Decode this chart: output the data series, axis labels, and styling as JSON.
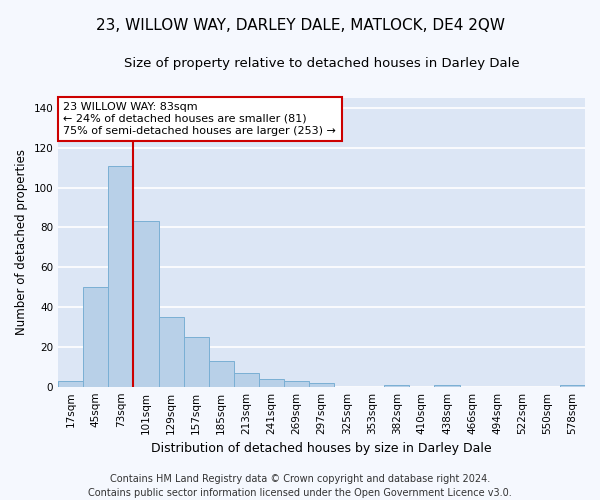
{
  "title": "23, WILLOW WAY, DARLEY DALE, MATLOCK, DE4 2QW",
  "subtitle": "Size of property relative to detached houses in Darley Dale",
  "xlabel": "Distribution of detached houses by size in Darley Dale",
  "ylabel": "Number of detached properties",
  "categories": [
    "17sqm",
    "45sqm",
    "73sqm",
    "101sqm",
    "129sqm",
    "157sqm",
    "185sqm",
    "213sqm",
    "241sqm",
    "269sqm",
    "297sqm",
    "325sqm",
    "353sqm",
    "382sqm",
    "410sqm",
    "438sqm",
    "466sqm",
    "494sqm",
    "522sqm",
    "550sqm",
    "578sqm"
  ],
  "values": [
    3,
    50,
    111,
    83,
    35,
    25,
    13,
    7,
    4,
    3,
    2,
    0,
    0,
    1,
    0,
    1,
    0,
    0,
    0,
    0,
    1
  ],
  "bar_color": "#b8d0e8",
  "bar_edge_color": "#7aafd4",
  "background_color": "#dce6f5",
  "grid_color": "#ffffff",
  "property_line_x": 2.5,
  "property_line_color": "#cc0000",
  "annotation_text": "23 WILLOW WAY: 83sqm\n← 24% of detached houses are smaller (81)\n75% of semi-detached houses are larger (253) →",
  "annotation_box_color": "#ffffff",
  "annotation_box_edge_color": "#cc0000",
  "ylim": [
    0,
    145
  ],
  "yticks": [
    0,
    20,
    40,
    60,
    80,
    100,
    120,
    140
  ],
  "footer_line1": "Contains HM Land Registry data © Crown copyright and database right 2024.",
  "footer_line2": "Contains public sector information licensed under the Open Government Licence v3.0.",
  "title_fontsize": 11,
  "subtitle_fontsize": 9.5,
  "xlabel_fontsize": 9,
  "ylabel_fontsize": 8.5,
  "tick_fontsize": 7.5,
  "footer_fontsize": 7,
  "annot_fontsize": 8
}
